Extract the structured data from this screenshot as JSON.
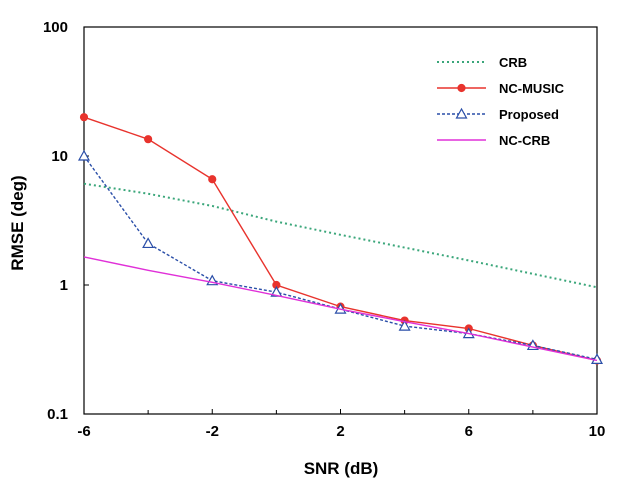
{
  "chart_data": {
    "type": "line",
    "xlabel": "SNR (dB)",
    "ylabel": "RMSE (deg)",
    "xlim": [
      -6,
      10
    ],
    "ylim": [
      0.1,
      100
    ],
    "yscale": "log",
    "xticks": [
      -6,
      -2,
      2,
      6,
      10
    ],
    "xtick_labels": [
      "-6",
      "-2",
      "2",
      "6",
      "10"
    ],
    "yticks": [
      0.1,
      1,
      10,
      100
    ],
    "ytick_labels": [
      "0.1",
      "1",
      "10",
      "100"
    ],
    "grid": false,
    "legend_position": "top-right",
    "x": [
      -6,
      -4,
      -2,
      0,
      2,
      4,
      6,
      8,
      10
    ],
    "series": [
      {
        "name": "CRB",
        "values": [
          6.1,
          5.1,
          4.1,
          3.1,
          2.45,
          1.95,
          1.55,
          1.22,
          0.96
        ],
        "color": "#3aa67a",
        "style": "dotted",
        "marker": "none"
      },
      {
        "name": "NC-MUSIC",
        "values": [
          20,
          13.5,
          6.6,
          1.0,
          0.68,
          0.53,
          0.46,
          0.34,
          0.26
        ],
        "color": "#e8332d",
        "style": "solid",
        "marker": "circle"
      },
      {
        "name": "Proposed",
        "values": [
          10,
          2.1,
          1.08,
          0.88,
          0.65,
          0.48,
          0.42,
          0.34,
          0.265
        ],
        "color": "#2a4ea8",
        "style": "dashed",
        "marker": "triangle"
      },
      {
        "name": "NC-CRB",
        "values": [
          1.65,
          1.3,
          1.05,
          0.83,
          0.65,
          0.52,
          0.42,
          0.33,
          0.26
        ],
        "color": "#e030d8",
        "style": "solid",
        "marker": "none"
      }
    ]
  }
}
